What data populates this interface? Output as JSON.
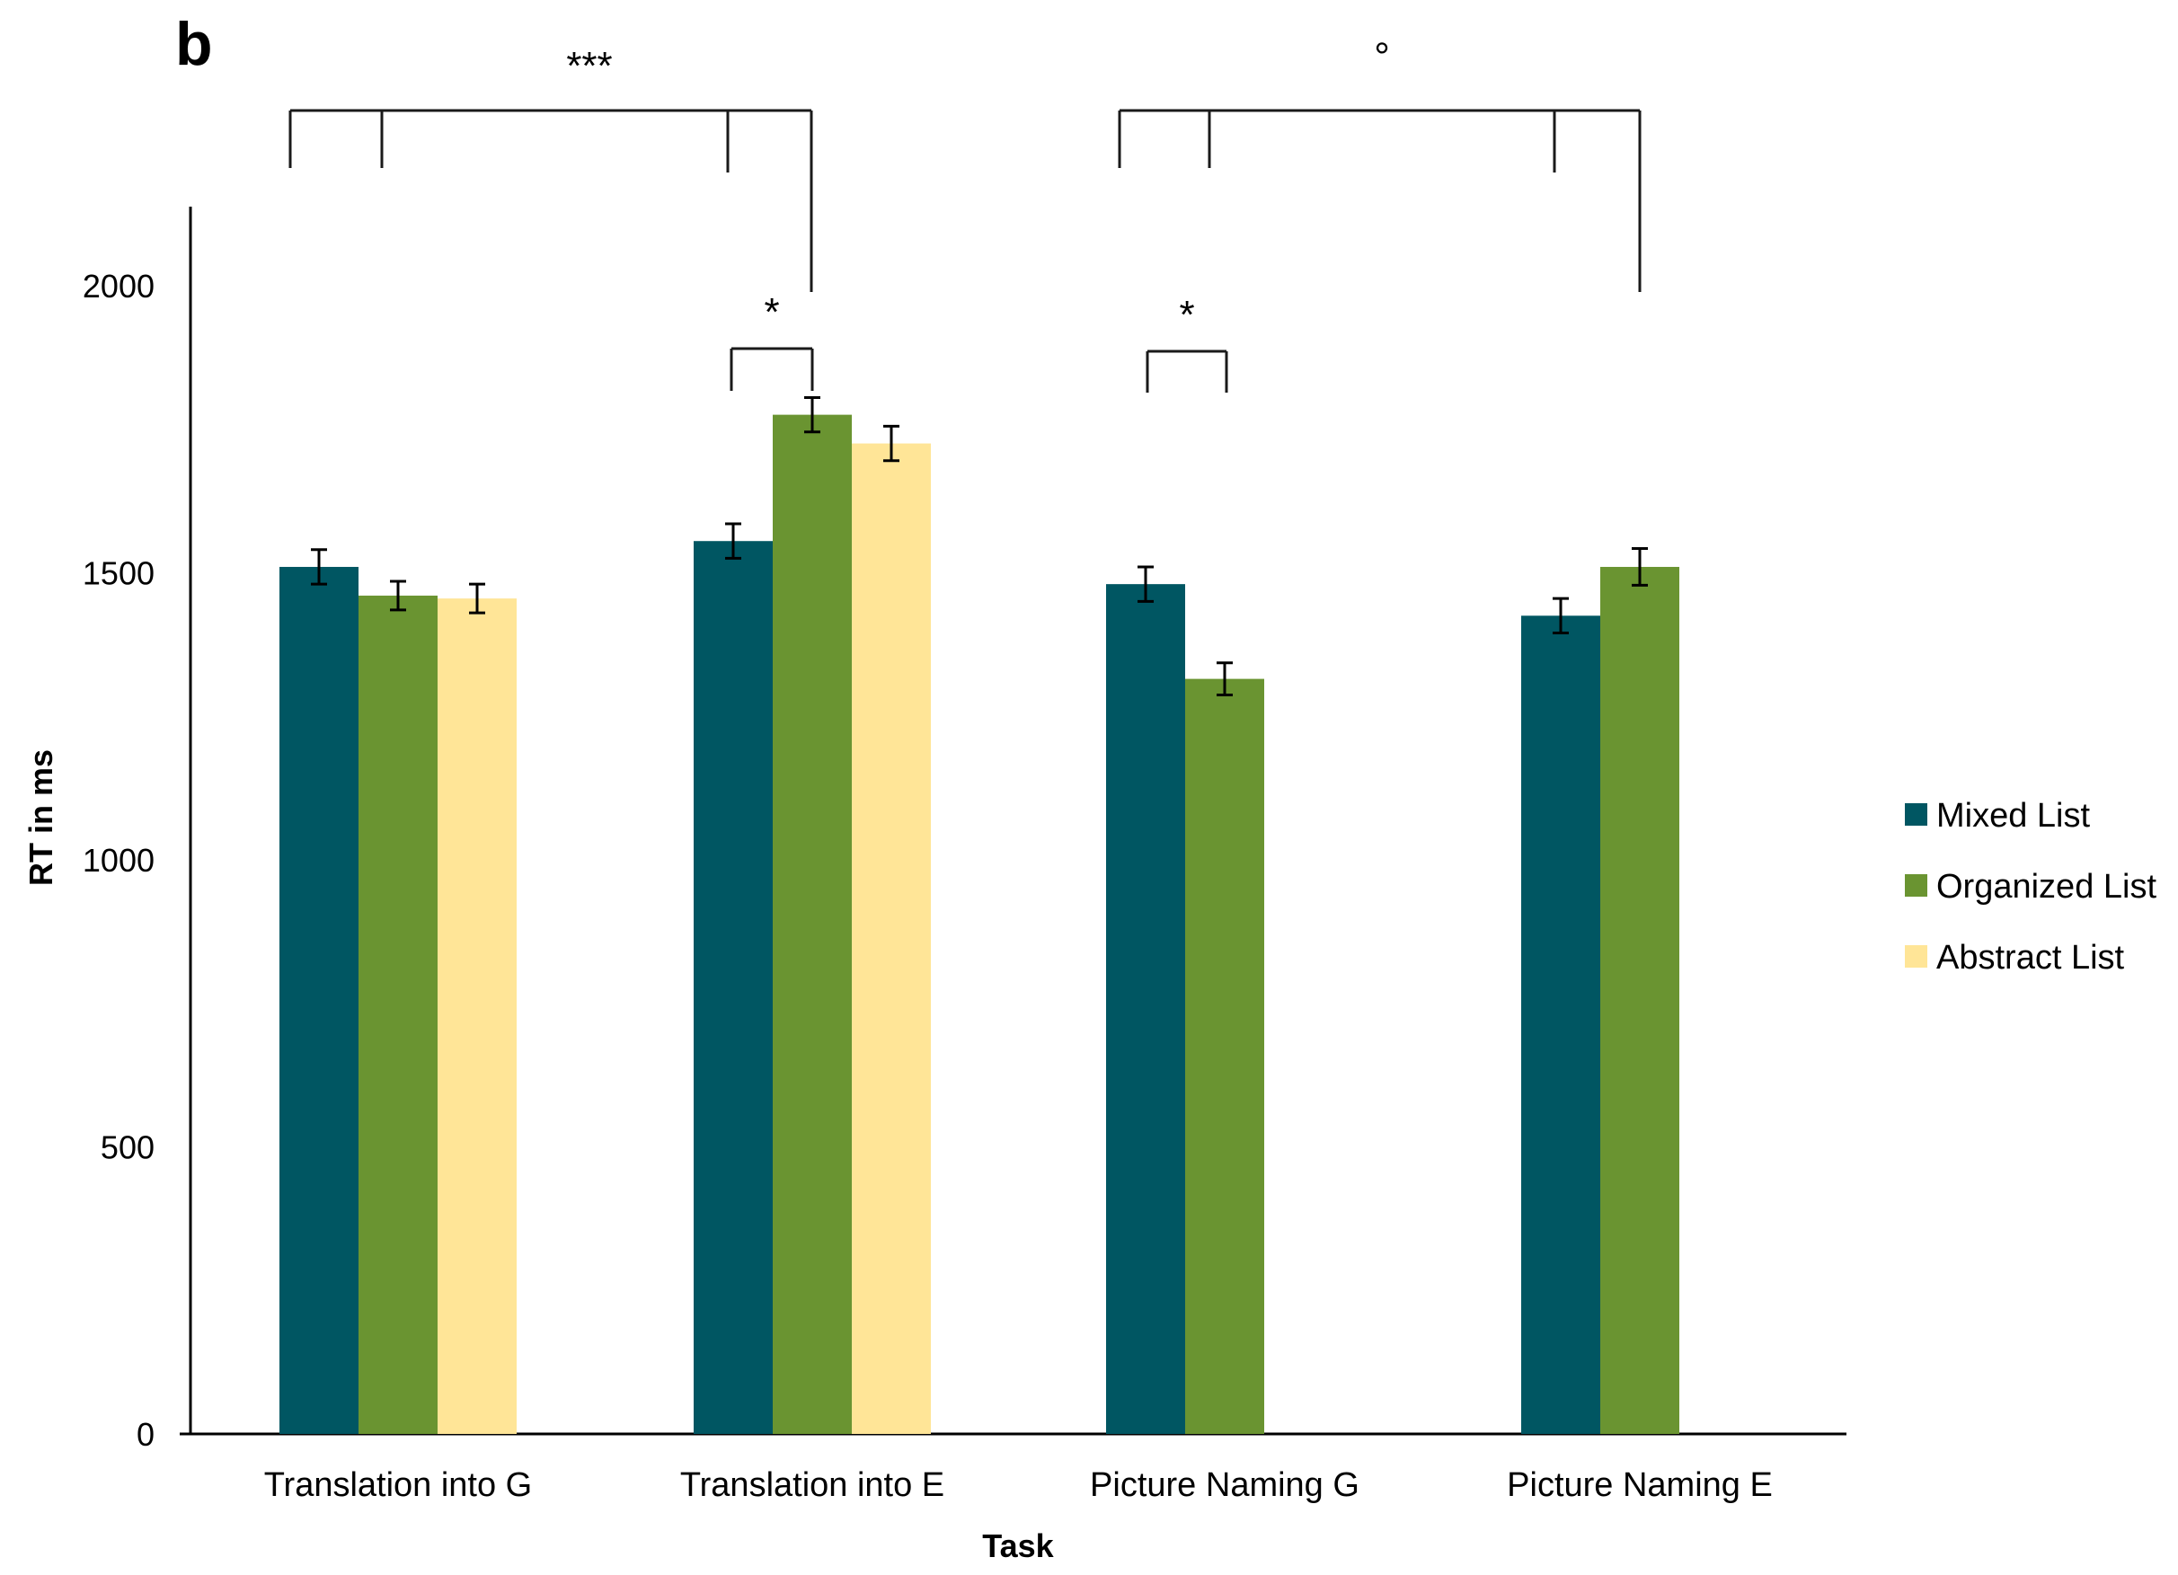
{
  "panel_label": "b",
  "chart_data": {
    "type": "bar",
    "title": "",
    "xlabel": "Task",
    "ylabel": "RT in ms",
    "ylim": [
      0,
      2200
    ],
    "yticks": [
      0,
      500,
      1000,
      1500,
      2000
    ],
    "categories": [
      "Translation into G",
      "Translation into E",
      "Picture Naming G",
      "Picture Naming E"
    ],
    "series": [
      {
        "name": "Mixed List",
        "color": "#005662",
        "values": [
          1510,
          1555,
          1480,
          1425
        ],
        "errors": [
          30,
          30,
          30,
          30
        ]
      },
      {
        "name": "Organized List",
        "color": "#6a9431",
        "values": [
          1460,
          1775,
          1315,
          1510
        ],
        "errors": [
          25,
          30,
          28,
          32
        ]
      },
      {
        "name": "Abstract List",
        "color": "#ffe597",
        "values": [
          1455,
          1725,
          null,
          null
        ],
        "errors": [
          25,
          30,
          null,
          null
        ]
      }
    ],
    "legend_position": "right",
    "significance": [
      {
        "label": "***",
        "scope": "Translation into G vs Translation into E"
      },
      {
        "label": "°",
        "scope": "Picture Naming G vs Picture Naming E"
      },
      {
        "label": "*",
        "scope": "Translation into E: Mixed List vs Organized List"
      },
      {
        "label": "*",
        "scope": "Picture Naming G: Mixed List vs Organized List"
      }
    ]
  }
}
